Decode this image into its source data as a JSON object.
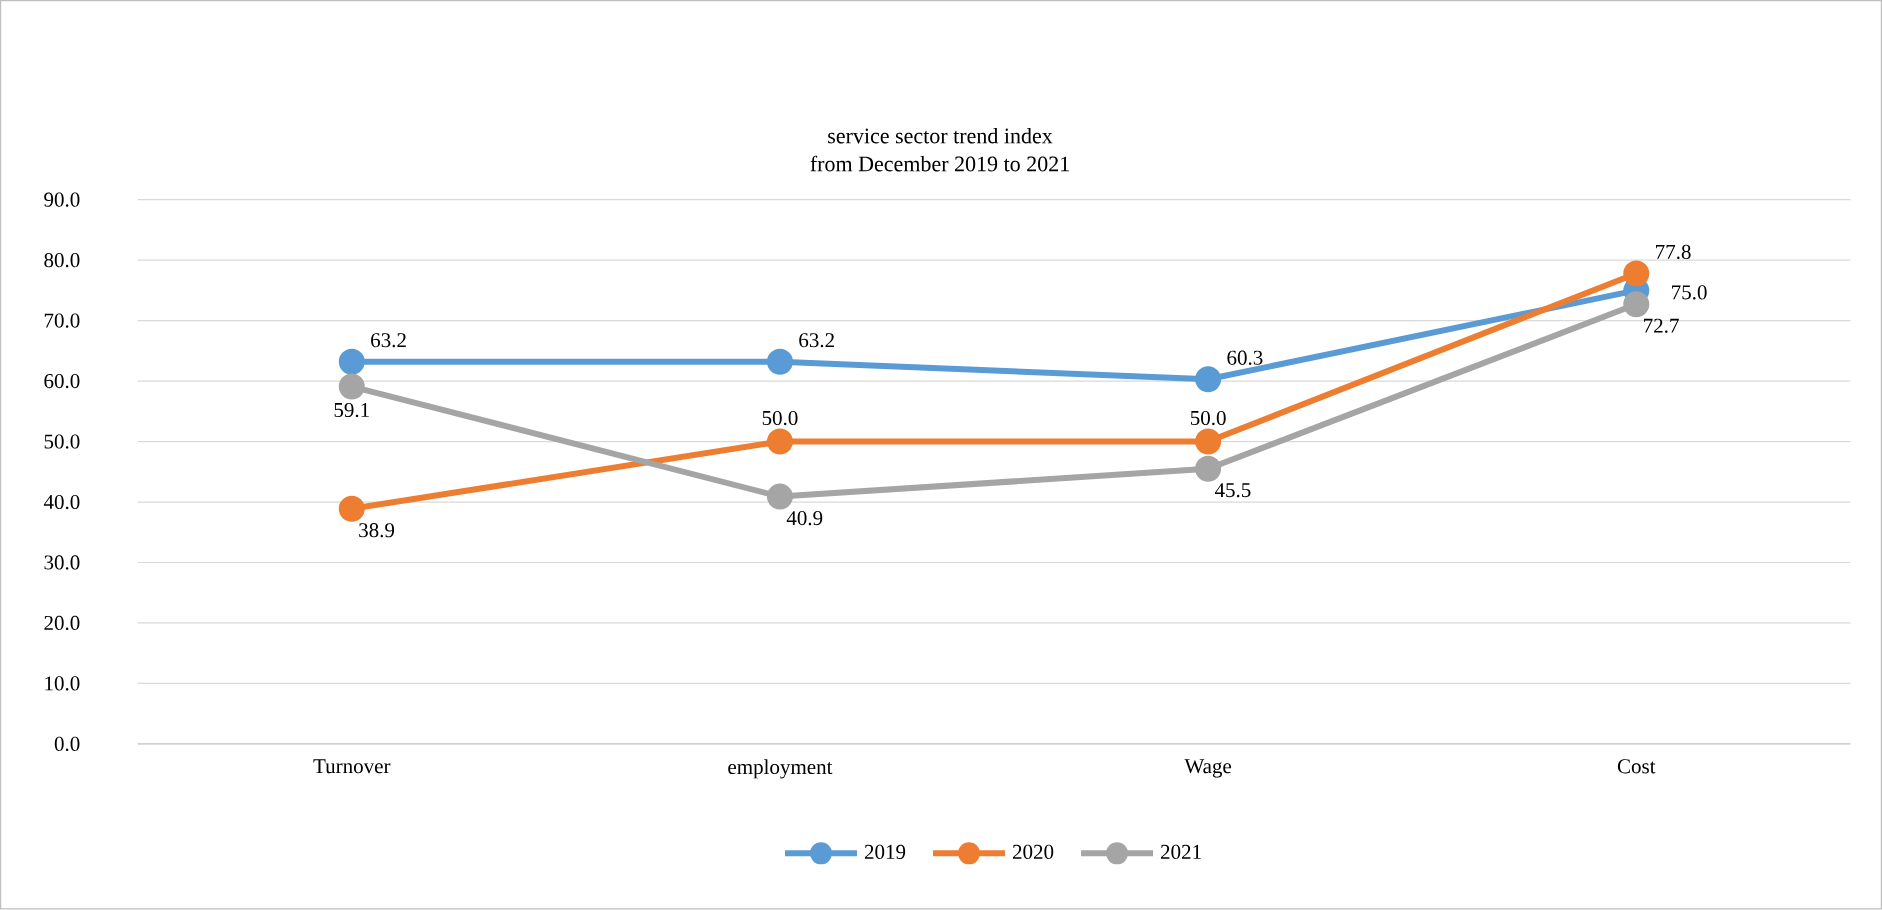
{
  "chart_data": {
    "type": "line",
    "title": "service sector trend index",
    "subtitle": "from December 2019 to 2021",
    "categories": [
      "Turnover",
      "employment",
      "Wage",
      "Cost"
    ],
    "series": [
      {
        "name": "2019",
        "color": "#5b9bd5",
        "values": [
          63.2,
          63.2,
          60.3,
          75.0
        ],
        "value_labels": [
          "63.2",
          "63.2",
          "60.3",
          "75.0"
        ]
      },
      {
        "name": "2020",
        "color": "#ed7d31",
        "values": [
          38.9,
          50.0,
          50.0,
          77.8
        ],
        "value_labels": [
          "38.9",
          "50.0",
          "50.0",
          "77.8"
        ]
      },
      {
        "name": "2021",
        "color": "#a5a5a5",
        "values": [
          59.1,
          40.9,
          45.5,
          72.7
        ],
        "value_labels": [
          "59.1",
          "40.9",
          "45.5",
          "72.7"
        ]
      }
    ],
    "ylim": [
      0,
      90
    ],
    "yticks": [
      {
        "value": 0,
        "label": "0.0"
      },
      {
        "value": 10,
        "label": "10.0"
      },
      {
        "value": 20,
        "label": "20.0"
      },
      {
        "value": 30,
        "label": "30.0"
      },
      {
        "value": 40,
        "label": "40.0"
      },
      {
        "value": 50,
        "label": "50.0"
      },
      {
        "value": 60,
        "label": "60.0"
      },
      {
        "value": 70,
        "label": "70.0"
      },
      {
        "value": 80,
        "label": "80.0"
      },
      {
        "value": 90,
        "label": "90.0"
      }
    ],
    "grid": "y",
    "legend": "bottom",
    "marker": "circle",
    "line_style": "solid"
  }
}
